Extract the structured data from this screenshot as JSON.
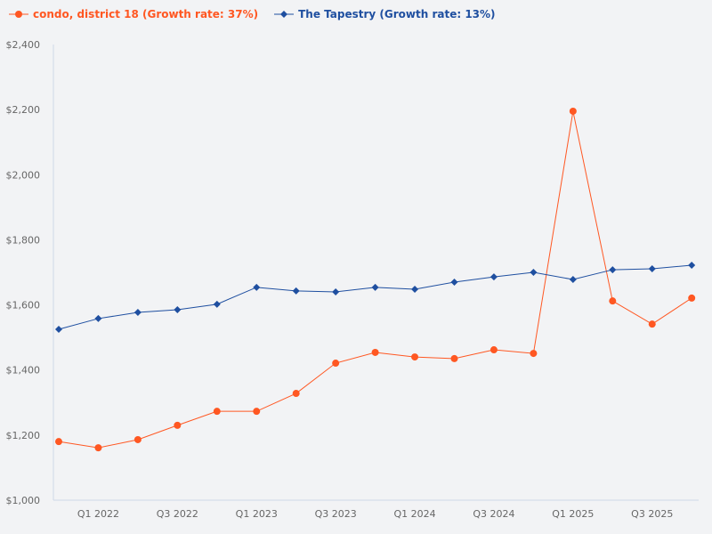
{
  "chart_data": {
    "type": "line",
    "title": "",
    "xlabel": "",
    "ylabel": "",
    "ylim": [
      1000,
      2400
    ],
    "y_ticks": [
      1000,
      1200,
      1400,
      1600,
      1800,
      2000,
      2200,
      2400
    ],
    "y_tick_labels": [
      "$1,000",
      "$1,200",
      "$1,400",
      "$1,600",
      "$1,800",
      "$2,000",
      "$2,200",
      "$2,400"
    ],
    "categories": [
      "",
      "Q1 2022",
      "",
      "Q3 2022",
      "",
      "Q1 2023",
      "",
      "Q3 2023",
      "",
      "Q1 2024",
      "",
      "Q3 2024",
      "",
      "Q1 2025",
      "",
      "Q3 2025",
      ""
    ],
    "grid": false,
    "legend_position": "top-left",
    "series": [
      {
        "name": "condo, district 18 (Growth rate: 37%)",
        "color": "#ff5722",
        "marker": "circle",
        "values": [
          1180,
          1161,
          1186,
          1230,
          1273,
          1273,
          1328,
          1421,
          1454,
          1440,
          1435,
          1462,
          1451,
          2195,
          1612,
          1541,
          1621
        ]
      },
      {
        "name": "The Tapestry (Growth rate: 13%)",
        "color": "#1f4fa0",
        "marker": "diamond",
        "values": [
          1525,
          1558,
          1577,
          1585,
          1602,
          1654,
          1643,
          1640,
          1654,
          1648,
          1670,
          1686,
          1700,
          1678,
          1708,
          1711,
          1722
        ]
      }
    ]
  }
}
